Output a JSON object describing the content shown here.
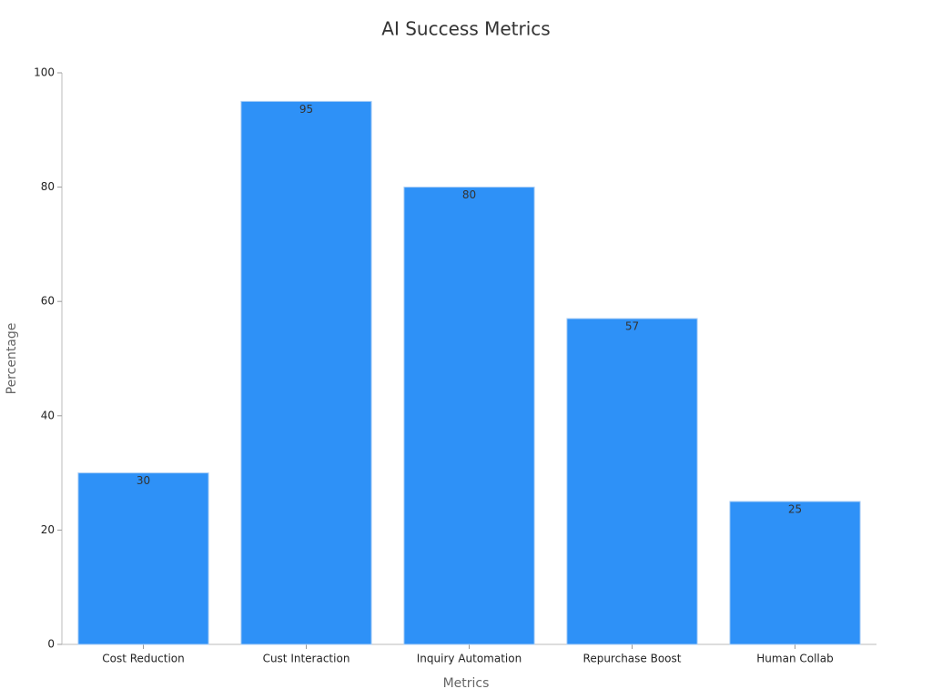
{
  "chart_data": {
    "type": "bar",
    "title": "AI Success Metrics",
    "x_label": "Metrics",
    "y_label": "Percentage",
    "categories": [
      "Cost Reduction",
      "Cust Interaction",
      "Inquiry Automation",
      "Repurchase Boost",
      "Human Collab"
    ],
    "values": [
      30,
      95,
      80,
      57,
      25
    ],
    "color": "#2e91f7",
    "ylim": [
      0,
      100
    ],
    "yticks": [
      0,
      20,
      40,
      60,
      80,
      100
    ],
    "grid": false
  }
}
